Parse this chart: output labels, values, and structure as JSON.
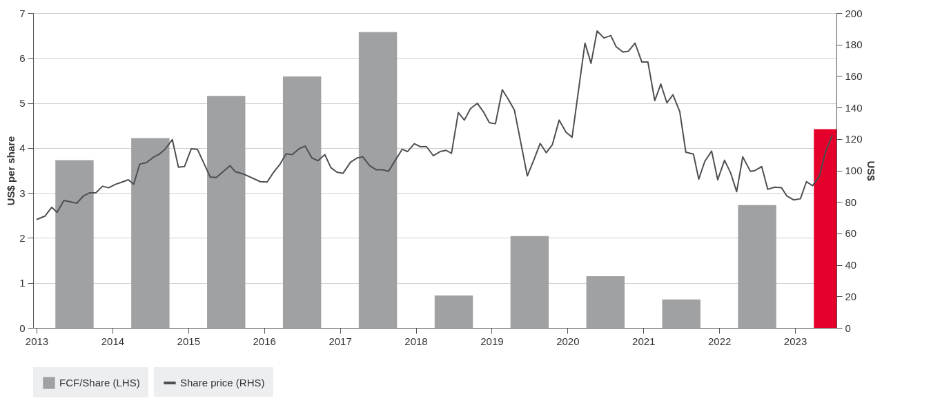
{
  "chart_data": {
    "type": "bar",
    "ylabel": "US$ per share",
    "y2label": "US$",
    "xlim": [
      2013,
      2023.5
    ],
    "xticks": [
      2013,
      2014,
      2015,
      2016,
      2017,
      2018,
      2019,
      2020,
      2021,
      2022,
      2023
    ],
    "ylim": [
      0,
      7
    ],
    "yticks": [
      0,
      1,
      2,
      3,
      4,
      5,
      6,
      7
    ],
    "y2lim": [
      0,
      200
    ],
    "y2ticks": [
      0,
      20,
      40,
      60,
      80,
      100,
      120,
      140,
      160,
      180,
      200
    ],
    "grid": "y",
    "legend": "bottom left",
    "series": [
      {
        "name": "FCF/Share (LHS)",
        "color": "#a0a1a3",
        "x": [
          2013.5,
          2014.5,
          2015.5,
          2016.5,
          2017.5,
          2018.5,
          2019.5,
          2020.5,
          2021.5,
          2022.5,
          2023.5
        ],
        "values": [
          3.73,
          4.22,
          5.16,
          5.59,
          6.58,
          0.72,
          2.04,
          1.15,
          0.63,
          2.73,
          4.42
        ],
        "colors": [
          "#a0a1a3",
          "#a0a1a3",
          "#a0a1a3",
          "#a0a1a3",
          "#a0a1a3",
          "#a0a1a3",
          "#a0a1a3",
          "#a0a1a3",
          "#a0a1a3",
          "#a0a1a3",
          "#e4002b"
        ]
      },
      {
        "name": "Share price (RHS)",
        "type": "line",
        "axis": "y2",
        "color": "#4d4f53",
        "x": [
          2013.0,
          2013.11,
          2013.2,
          2013.27,
          2013.36,
          2013.53,
          2013.62,
          2013.7,
          2013.78,
          2013.87,
          2013.95,
          2014.04,
          2014.13,
          2014.21,
          2014.28,
          2014.36,
          2014.45,
          2014.54,
          2014.62,
          2014.7,
          2014.79,
          2014.87,
          2014.95,
          2015.04,
          2015.12,
          2015.29,
          2015.37,
          2015.55,
          2015.62,
          2015.73,
          2015.95,
          2016.04,
          2016.13,
          2016.21,
          2016.29,
          2016.37,
          2016.46,
          2016.54,
          2016.63,
          2016.71,
          2016.8,
          2016.88,
          2016.96,
          2017.04,
          2017.14,
          2017.23,
          2017.3,
          2017.39,
          2017.48,
          2017.56,
          2017.64,
          2017.73,
          2017.82,
          2017.89,
          2017.98,
          2018.06,
          2018.14,
          2018.23,
          2018.32,
          2018.4,
          2018.47,
          2018.56,
          2018.64,
          2018.72,
          2018.81,
          2018.89,
          2018.97,
          2019.05,
          2019.14,
          2019.22,
          2019.3,
          2019.47,
          2019.56,
          2019.64,
          2019.72,
          2019.8,
          2019.89,
          2019.98,
          2020.06,
          2020.23,
          2020.31,
          2020.39,
          2020.48,
          2020.57,
          2020.64,
          2020.73,
          2020.8,
          2020.89,
          2020.98,
          2021.06,
          2021.15,
          2021.23,
          2021.31,
          2021.39,
          2021.48,
          2021.56,
          2021.66,
          2021.73,
          2021.81,
          2021.9,
          2021.98,
          2022.07,
          2022.15,
          2022.23,
          2022.31,
          2022.41,
          2022.47,
          2022.56,
          2022.64,
          2022.73,
          2022.82,
          2022.89,
          2022.98,
          2023.07,
          2023.15,
          2023.23,
          2023.32,
          2023.4,
          2023.49
        ],
        "values": [
          68.8,
          71.0,
          76.6,
          73.4,
          81.0,
          79.2,
          83.9,
          85.8,
          85.8,
          90.0,
          89.0,
          91.2,
          92.7,
          94.1,
          91.2,
          104.0,
          105.0,
          108.4,
          110.4,
          113.8,
          119.6,
          102.1,
          102.5,
          113.8,
          113.5,
          95.8,
          95.5,
          103.1,
          99.2,
          97.7,
          92.9,
          92.7,
          99.2,
          104.0,
          110.6,
          110.1,
          113.8,
          115.5,
          108.0,
          106.2,
          110.1,
          101.8,
          98.9,
          98.2,
          105.3,
          108.0,
          108.7,
          103.1,
          100.4,
          100.4,
          99.5,
          106.5,
          113.5,
          112.0,
          117.0,
          115.1,
          115.2,
          109.4,
          112.0,
          112.8,
          110.9,
          136.8,
          132.0,
          139.3,
          142.7,
          137.4,
          130.3,
          129.7,
          151.3,
          145.2,
          138.3,
          96.6,
          107.2,
          117.2,
          111.3,
          116.4,
          132.0,
          124.3,
          121.1,
          180.9,
          168.1,
          188.6,
          184.2,
          185.7,
          178.7,
          175.3,
          175.7,
          180.9,
          168.9,
          168.9,
          144.4,
          154.9,
          143.0,
          148.1,
          137.4,
          111.6,
          110.4,
          94.5,
          105.8,
          112.3,
          94.1,
          106.5,
          98.5,
          86.5,
          108.7,
          99.5,
          99.9,
          102.5,
          88.0,
          89.4,
          89.1,
          83.9,
          81.3,
          82.0,
          92.9,
          90.3,
          96.3,
          111.6,
          122.5
        ]
      }
    ]
  }
}
